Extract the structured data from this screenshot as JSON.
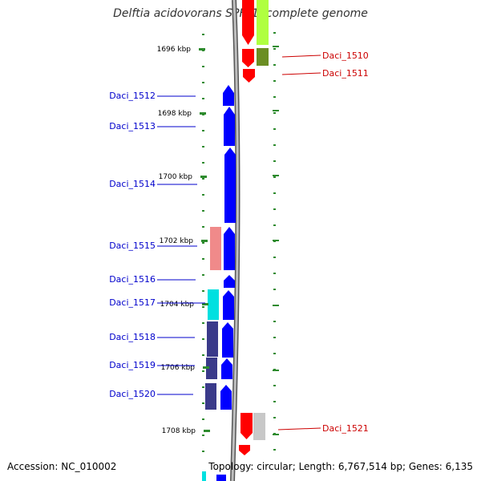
{
  "title": "Delftia acidovorans SPH-1, complete genome",
  "accession": {
    "label": "Accession:",
    "value": "NC_010002"
  },
  "topology": {
    "label": "Topology:",
    "value": "circular;",
    "length_label": "Length:",
    "length_value": "6,767,514 bp;",
    "genes_label": "Genes:",
    "genes_value": "6,135"
  },
  "ticks": [
    "1696 kbp",
    "1698 kbp",
    "1700 kbp",
    "1702 kbp",
    "1704 kbp",
    "1706 kbp",
    "1708 kbp"
  ],
  "genes_left": [
    "Daci_1512",
    "Daci_1513",
    "Daci_1514",
    "Daci_1515",
    "Daci_1516",
    "Daci_1517",
    "Daci_1518",
    "Daci_1519",
    "Daci_1520"
  ],
  "genes_right": [
    "Daci_1510",
    "Daci_1511",
    "Daci_1521"
  ],
  "colors": {
    "forward_gene": "#0000ff",
    "reverse_gene": "#ff0000",
    "left_label": "#0000cc",
    "right_label": "#cc0000",
    "tick": "#2e8b2e",
    "backbone": "#8c8c8c",
    "cog_salmon": "#f08a8a",
    "cog_cyan": "#00e0e0",
    "cog_navy": "#3a3a8a",
    "cog_lime": "#b0ff40",
    "cog_olive": "#6b8e23",
    "cog_grey": "#c8c8c8"
  }
}
